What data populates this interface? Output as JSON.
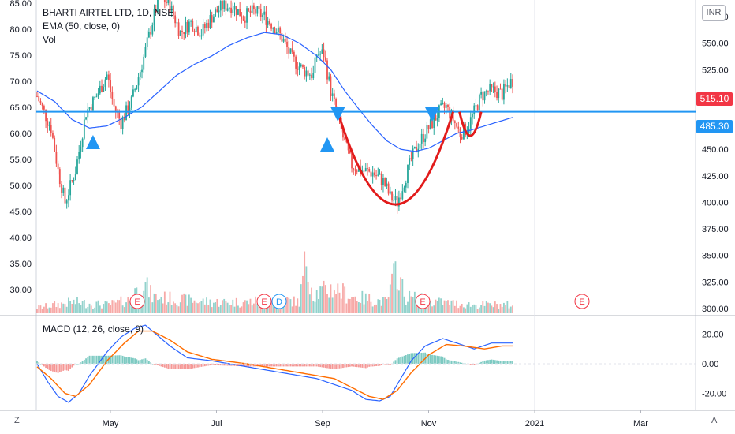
{
  "header": {
    "title": "BHARTI AIRTEL LTD, 1D, NSE",
    "ema_label": "EMA (50, close, 0)",
    "vol_label": "Vol",
    "macd_label": "MACD (12, 26, close, 9)",
    "currency": "INR",
    "scale_button": "Z",
    "auto_button": "A"
  },
  "price_tags": {
    "last_price": "515.10",
    "resistance": "485.30",
    "last_color": "#f23645",
    "resistance_color": "#2196f3"
  },
  "event_markers": [
    "E",
    "E",
    "D",
    "E",
    "E"
  ],
  "colors": {
    "up": "#26a69a",
    "down": "#ef5350",
    "ema": "#2962ff",
    "macd": "#2962ff",
    "signal": "#ff6d00",
    "pattern": "#e21b1b",
    "arrows": "#2196f3",
    "resistance": "#2196f3"
  },
  "chart_data": {
    "type": "candlestick",
    "title": "BHARTI AIRTEL LTD, 1D, NSE",
    "left_axis": {
      "ticks": [
        "85.00",
        "80.00",
        "75.00",
        "70.00",
        "65.00",
        "60.00",
        "55.00",
        "50.00",
        "45.00",
        "40.00",
        "35.00",
        "30.00"
      ]
    },
    "right_axis": {
      "ticks": [
        "575.00",
        "550.00",
        "525.00",
        "500.00",
        "475.00",
        "450.00",
        "425.00",
        "400.00",
        "375.00",
        "350.00",
        "325.00",
        "300.00"
      ],
      "ylim": [
        300,
        600
      ]
    },
    "macd_axis": {
      "ticks": [
        "20.00",
        "0.00",
        "-20.00"
      ]
    },
    "x_ticks": [
      "May",
      "Jul",
      "Sep",
      "Nov",
      "2021",
      "Mar"
    ],
    "resistance_level": 485.3,
    "last_price": 515.1,
    "price_path": [
      [
        0,
        500
      ],
      [
        8,
        470
      ],
      [
        12,
        430
      ],
      [
        16,
        400
      ],
      [
        22,
        430
      ],
      [
        28,
        485
      ],
      [
        34,
        500
      ],
      [
        40,
        520
      ],
      [
        44,
        490
      ],
      [
        48,
        475
      ],
      [
        54,
        495
      ],
      [
        60,
        530
      ],
      [
        66,
        570
      ],
      [
        70,
        595
      ],
      [
        76,
        585
      ],
      [
        82,
        560
      ],
      [
        88,
        570
      ],
      [
        94,
        560
      ],
      [
        100,
        575
      ],
      [
        106,
        585
      ],
      [
        112,
        585
      ],
      [
        118,
        575
      ],
      [
        124,
        580
      ],
      [
        130,
        575
      ],
      [
        136,
        565
      ],
      [
        140,
        555
      ],
      [
        146,
        535
      ],
      [
        152,
        525
      ],
      [
        158,
        520
      ],
      [
        160,
        540
      ],
      [
        164,
        540
      ],
      [
        168,
        505
      ],
      [
        172,
        480
      ],
      [
        176,
        455
      ],
      [
        180,
        435
      ],
      [
        186,
        430
      ],
      [
        192,
        428
      ],
      [
        198,
        420
      ],
      [
        202,
        405
      ],
      [
        206,
        400
      ],
      [
        210,
        420
      ],
      [
        214,
        440
      ],
      [
        218,
        455
      ],
      [
        222,
        465
      ],
      [
        226,
        475
      ],
      [
        230,
        485
      ],
      [
        234,
        490
      ],
      [
        238,
        478
      ],
      [
        242,
        465
      ],
      [
        246,
        470
      ],
      [
        250,
        485
      ],
      [
        254,
        500
      ],
      [
        258,
        505
      ],
      [
        262,
        505
      ],
      [
        266,
        502
      ],
      [
        270,
        512
      ],
      [
        272,
        515
      ]
    ],
    "ema50_path": [
      [
        0,
        505
      ],
      [
        10,
        495
      ],
      [
        20,
        478
      ],
      [
        30,
        470
      ],
      [
        40,
        472
      ],
      [
        50,
        480
      ],
      [
        60,
        490
      ],
      [
        70,
        505
      ],
      [
        80,
        520
      ],
      [
        90,
        530
      ],
      [
        100,
        538
      ],
      [
        110,
        548
      ],
      [
        120,
        555
      ],
      [
        130,
        560
      ],
      [
        140,
        558
      ],
      [
        150,
        550
      ],
      [
        160,
        538
      ],
      [
        168,
        525
      ],
      [
        176,
        505
      ],
      [
        184,
        488
      ],
      [
        192,
        472
      ],
      [
        200,
        458
      ],
      [
        208,
        450
      ],
      [
        216,
        448
      ],
      [
        224,
        451
      ],
      [
        232,
        458
      ],
      [
        240,
        465
      ],
      [
        248,
        468
      ],
      [
        256,
        472
      ],
      [
        264,
        476
      ],
      [
        272,
        480
      ]
    ],
    "volume_path": [
      [
        0,
        0.1
      ],
      [
        20,
        0.2
      ],
      [
        40,
        0.15
      ],
      [
        55,
        0.25
      ],
      [
        56,
        0.45
      ],
      [
        58,
        0.3
      ],
      [
        60,
        0.6
      ],
      [
        66,
        0.3
      ],
      [
        80,
        0.25
      ],
      [
        100,
        0.2
      ],
      [
        120,
        0.2
      ],
      [
        140,
        0.25
      ],
      [
        150,
        0.2
      ],
      [
        154,
        1.0
      ],
      [
        158,
        0.35
      ],
      [
        170,
        0.45
      ],
      [
        180,
        0.3
      ],
      [
        200,
        0.2
      ],
      [
        206,
        0.85
      ],
      [
        210,
        0.3
      ],
      [
        230,
        0.2
      ],
      [
        250,
        0.15
      ],
      [
        272,
        0.15
      ]
    ],
    "macd_line": [
      [
        0,
        0
      ],
      [
        6,
        -12
      ],
      [
        12,
        -22
      ],
      [
        18,
        -26
      ],
      [
        24,
        -20
      ],
      [
        30,
        -8
      ],
      [
        40,
        8
      ],
      [
        48,
        18
      ],
      [
        56,
        24
      ],
      [
        62,
        26
      ],
      [
        68,
        20
      ],
      [
        76,
        12
      ],
      [
        86,
        4
      ],
      [
        100,
        2
      ],
      [
        120,
        -2
      ],
      [
        140,
        -6
      ],
      [
        150,
        -8
      ],
      [
        160,
        -10
      ],
      [
        170,
        -14
      ],
      [
        180,
        -18
      ],
      [
        188,
        -24
      ],
      [
        196,
        -25
      ],
      [
        202,
        -22
      ],
      [
        208,
        -10
      ],
      [
        214,
        2
      ],
      [
        222,
        12
      ],
      [
        232,
        17
      ],
      [
        240,
        14
      ],
      [
        250,
        10
      ],
      [
        260,
        14
      ],
      [
        272,
        14
      ]
    ],
    "signal_line": [
      [
        0,
        -2
      ],
      [
        8,
        -10
      ],
      [
        16,
        -20
      ],
      [
        22,
        -22
      ],
      [
        30,
        -14
      ],
      [
        40,
        2
      ],
      [
        50,
        14
      ],
      [
        58,
        22
      ],
      [
        66,
        22
      ],
      [
        76,
        16
      ],
      [
        86,
        8
      ],
      [
        100,
        3
      ],
      [
        120,
        0
      ],
      [
        140,
        -4
      ],
      [
        160,
        -8
      ],
      [
        170,
        -10
      ],
      [
        180,
        -16
      ],
      [
        190,
        -22
      ],
      [
        198,
        -24
      ],
      [
        206,
        -18
      ],
      [
        214,
        -6
      ],
      [
        224,
        6
      ],
      [
        234,
        13
      ],
      [
        244,
        12
      ],
      [
        256,
        10
      ],
      [
        266,
        12
      ],
      [
        272,
        12
      ]
    ],
    "cup_handle_pattern": {
      "type": "cup and handle",
      "left_rim": 485.3,
      "cup_bottom": 398,
      "right_rim": 485.3,
      "handle_bottom": 455
    }
  }
}
